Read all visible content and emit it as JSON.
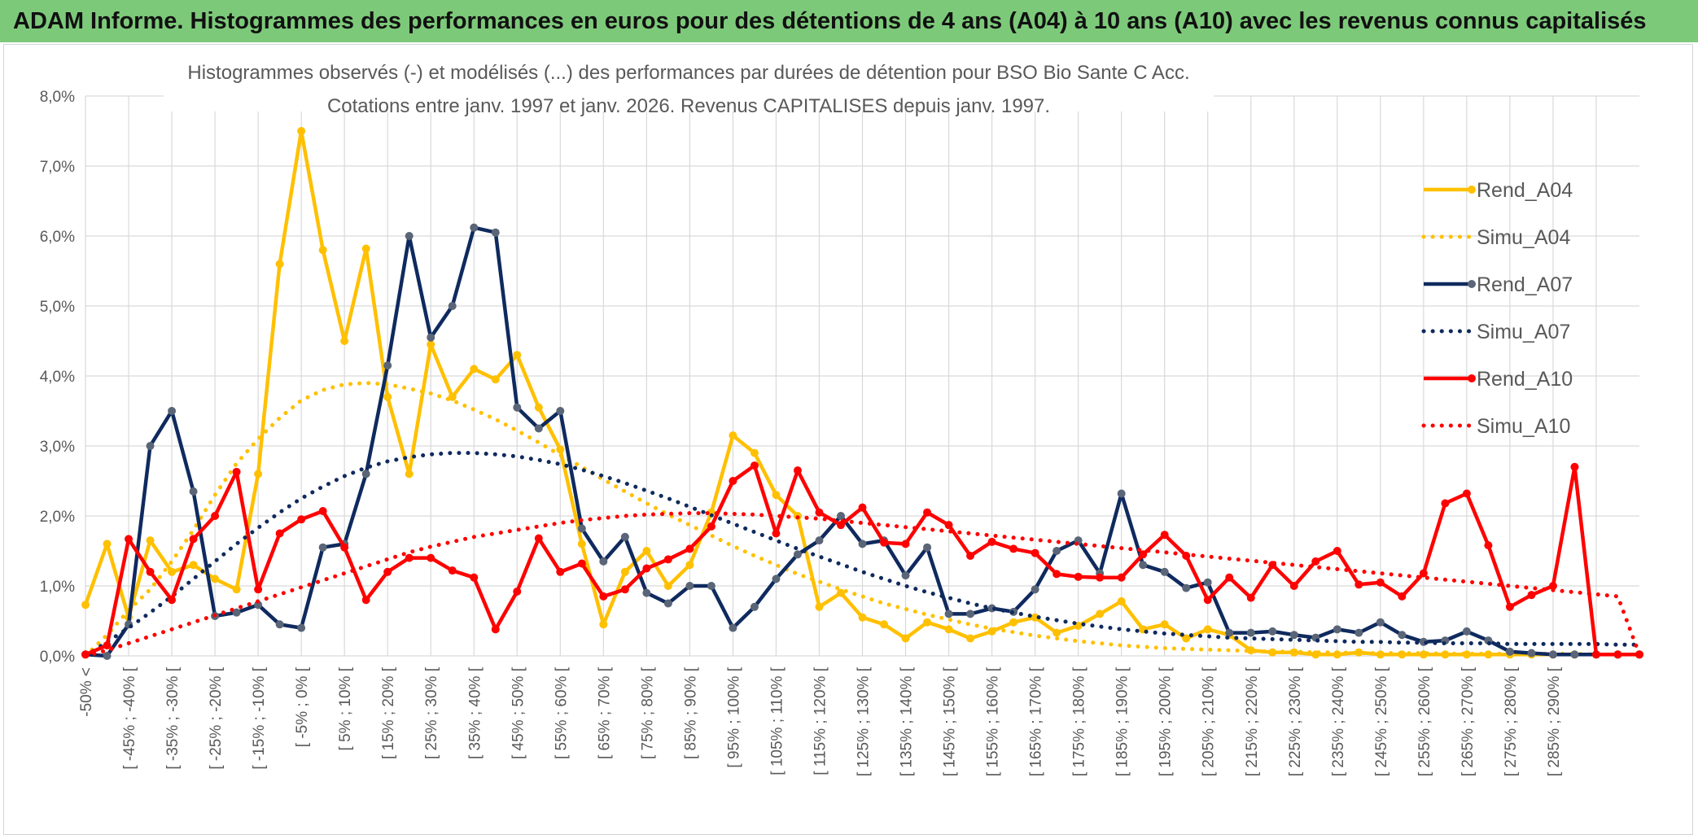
{
  "banner": {
    "title": "ADAM Informe. Histogrammes des performances en euros pour des détentions de 4 ans (A04) à 10 ans (A10) avec les revenus connus capitalisés"
  },
  "colors": {
    "banner_bg": "#7dc97a",
    "A04": "#ffc000",
    "A07": "#0f2a5e",
    "A07_marker": "#5a6577",
    "A10": "#ff0000",
    "grid": "#d9d9d9"
  },
  "chart_data": {
    "type": "line",
    "title_lines": [
      "Histogrammes observés (-) et modélisés (...) des performances par durées de détention pour BSO Bio Sante C Acc.",
      "Cotations entre janv. 1997 et janv. 2026. Revenus CAPITALISES depuis janv. 1997."
    ],
    "ylim": [
      0,
      8
    ],
    "yticks": [
      "0,0%",
      "1,0%",
      "2,0%",
      "3,0%",
      "4,0%",
      "5,0%",
      "6,0%",
      "7,0%",
      "8,0%"
    ],
    "grid": true,
    "legend_position": "right",
    "x_labels": [
      "-50% <",
      "[ -45% ; -40% [",
      "[ -35% ; -30% [",
      "[ -25% ; -20% [",
      "[ -15% ; -10% [",
      "[ -5% ; 0% [",
      "[ 5% ; 10% [",
      "[ 15% ; 20% [",
      "[ 25% ; 30% [",
      "[ 35% ; 40% [",
      "[ 45% ; 50% [",
      "[ 55% ; 60% [",
      "[ 65% ; 70% [",
      "[ 75% ; 80% [",
      "[ 85% ; 90% [",
      "[ 95% ; 100% [",
      "[ 105% ; 110% [",
      "[ 115% ; 120% [",
      "[ 125% ; 130% [",
      "[ 135% ; 140% [",
      "[ 145% ; 150% [",
      "[ 155% ; 160% [",
      "[ 165% ; 170% [",
      "[ 175% ; 180% [",
      "[ 185% ; 190% [",
      "[ 195% ; 200% [",
      "[ 205% ; 210% [",
      "[ 215% ; 220% [",
      "[ 225% ; 230% [",
      "[ 235% ; 240% [",
      "[ 245% ; 250% [",
      "[ 255% ; 260% [",
      "[ 265% ; 270% [",
      "[ 275% ; 280% [",
      "[ 285% ; 290% ["
    ],
    "series": [
      {
        "name": "Rend_A04",
        "style": "solid",
        "color": "#ffc000",
        "values": [
          0.73,
          1.6,
          0.55,
          1.65,
          1.2,
          1.3,
          1.1,
          0.95,
          2.6,
          5.6,
          7.5,
          5.8,
          4.5,
          5.82,
          3.7,
          2.6,
          4.45,
          3.7,
          4.1,
          3.95,
          4.3,
          3.55,
          2.95,
          1.6,
          0.45,
          1.2,
          1.5,
          1.0,
          1.3,
          2.05,
          3.15,
          2.9,
          2.3,
          2.0,
          0.7,
          0.9,
          0.55,
          0.45,
          0.25,
          0.48,
          0.38,
          0.25,
          0.35,
          0.48,
          0.55,
          0.33,
          0.43,
          0.6,
          0.78,
          0.38,
          0.45,
          0.25,
          0.38,
          0.3,
          0.08,
          0.05,
          0.05,
          0.02,
          0.02,
          0.05,
          0.02,
          0.02,
          0.02,
          0.02,
          0.02,
          0.02,
          0.02,
          0.02,
          0.02,
          0.02,
          0.02,
          0.02,
          0.02
        ]
      },
      {
        "name": "Simu_A04",
        "style": "dotted",
        "color": "#ffc000",
        "values": [
          0.0,
          0.3,
          0.65,
          0.95,
          1.35,
          1.8,
          2.3,
          2.75,
          3.1,
          3.4,
          3.65,
          3.8,
          3.88,
          3.9,
          3.88,
          3.82,
          3.75,
          3.65,
          3.52,
          3.38,
          3.22,
          3.05,
          2.87,
          2.7,
          2.52,
          2.35,
          2.18,
          2.02,
          1.87,
          1.72,
          1.57,
          1.43,
          1.3,
          1.17,
          1.06,
          0.95,
          0.85,
          0.75,
          0.67,
          0.59,
          0.52,
          0.45,
          0.39,
          0.34,
          0.29,
          0.25,
          0.21,
          0.18,
          0.15,
          0.13,
          0.11,
          0.1,
          0.09,
          0.08,
          0.07,
          0.06,
          0.06,
          0.05,
          0.05,
          0.04,
          0.04,
          0.04,
          0.04,
          0.03,
          0.03,
          0.03,
          0.03,
          0.03,
          0.03,
          0.03,
          0.02,
          0.02,
          0.02
        ]
      },
      {
        "name": "Rend_A07",
        "style": "solid",
        "color": "#0f2a5e",
        "values": [
          0.02,
          0.0,
          0.45,
          3.0,
          3.5,
          2.35,
          0.57,
          0.62,
          0.73,
          0.45,
          0.4,
          1.55,
          1.6,
          2.6,
          4.15,
          6.0,
          4.55,
          5.0,
          6.12,
          6.05,
          3.55,
          3.25,
          3.5,
          1.82,
          1.35,
          1.7,
          0.9,
          0.75,
          1.0,
          1.0,
          0.4,
          0.7,
          1.1,
          1.45,
          1.65,
          2.0,
          1.6,
          1.65,
          1.15,
          1.55,
          0.6,
          0.6,
          0.68,
          0.63,
          0.95,
          1.5,
          1.65,
          1.18,
          2.32,
          1.3,
          1.2,
          0.97,
          1.05,
          0.33,
          0.33,
          0.35,
          0.3,
          0.26,
          0.38,
          0.33,
          0.48,
          0.3,
          0.2,
          0.22,
          0.35,
          0.22,
          0.06,
          0.04,
          0.02,
          0.02,
          0.02,
          0.02,
          0.02
        ]
      },
      {
        "name": "Simu_A07",
        "style": "dotted",
        "color": "#0f2a5e",
        "values": [
          0.0,
          0.2,
          0.4,
          0.62,
          0.85,
          1.1,
          1.35,
          1.6,
          1.83,
          2.05,
          2.25,
          2.42,
          2.57,
          2.69,
          2.78,
          2.84,
          2.88,
          2.9,
          2.9,
          2.88,
          2.85,
          2.8,
          2.74,
          2.66,
          2.57,
          2.47,
          2.36,
          2.25,
          2.13,
          2.01,
          1.89,
          1.77,
          1.65,
          1.53,
          1.42,
          1.31,
          1.2,
          1.1,
          1.0,
          0.91,
          0.83,
          0.75,
          0.68,
          0.62,
          0.56,
          0.51,
          0.46,
          0.42,
          0.38,
          0.35,
          0.32,
          0.3,
          0.28,
          0.26,
          0.25,
          0.24,
          0.23,
          0.22,
          0.21,
          0.2,
          0.2,
          0.19,
          0.19,
          0.18,
          0.18,
          0.18,
          0.17,
          0.17,
          0.17,
          0.17,
          0.17,
          0.16,
          0.16
        ]
      },
      {
        "name": "Rend_A10",
        "style": "solid",
        "color": "#ff0000",
        "values": [
          0.02,
          0.15,
          1.67,
          1.2,
          0.8,
          1.67,
          2.0,
          2.63,
          0.95,
          1.75,
          1.95,
          2.07,
          1.55,
          0.8,
          1.2,
          1.4,
          1.4,
          1.22,
          1.12,
          0.38,
          0.92,
          1.68,
          1.2,
          1.32,
          0.85,
          0.95,
          1.25,
          1.38,
          1.53,
          1.85,
          2.5,
          2.72,
          1.75,
          2.65,
          2.05,
          1.87,
          2.12,
          1.62,
          1.6,
          2.05,
          1.87,
          1.43,
          1.63,
          1.53,
          1.47,
          1.17,
          1.13,
          1.12,
          1.12,
          1.45,
          1.73,
          1.43,
          0.8,
          1.12,
          0.83,
          1.3,
          1.0,
          1.35,
          1.5,
          1.02,
          1.05,
          0.85,
          1.18,
          2.18,
          2.32,
          1.58,
          0.7,
          0.87,
          1.0,
          2.7,
          0.02,
          0.02,
          0.02
        ]
      },
      {
        "name": "Simu_A10",
        "style": "dotted",
        "color": "#ff0000",
        "values": [
          0.0,
          0.08,
          0.18,
          0.28,
          0.38,
          0.48,
          0.58,
          0.68,
          0.78,
          0.88,
          0.98,
          1.08,
          1.18,
          1.28,
          1.38,
          1.48,
          1.56,
          1.63,
          1.7,
          1.75,
          1.8,
          1.85,
          1.9,
          1.94,
          1.97,
          2.0,
          2.02,
          2.03,
          2.04,
          2.04,
          2.03,
          2.02,
          2.0,
          1.98,
          1.96,
          1.93,
          1.9,
          1.87,
          1.84,
          1.81,
          1.78,
          1.75,
          1.72,
          1.69,
          1.66,
          1.63,
          1.6,
          1.57,
          1.54,
          1.51,
          1.48,
          1.45,
          1.42,
          1.39,
          1.36,
          1.33,
          1.3,
          1.27,
          1.24,
          1.21,
          1.18,
          1.15,
          1.12,
          1.09,
          1.06,
          1.03,
          1.0,
          0.97,
          0.94,
          0.91,
          0.88,
          0.85,
          0.02
        ]
      }
    ]
  }
}
